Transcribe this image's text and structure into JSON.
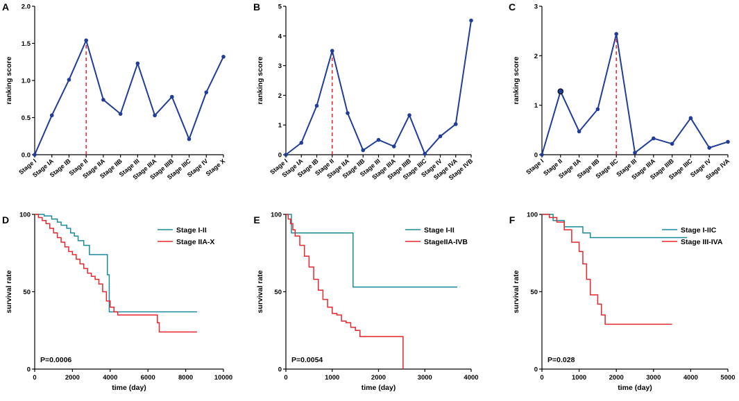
{
  "colors": {
    "blue": "#1f3d99",
    "red": "#e8262b",
    "teal": "#1a8a99",
    "axis": "#000000"
  },
  "chart_data": [
    {
      "panel": "A",
      "type": "line",
      "ylabel": "ranking score",
      "xlabel": "",
      "ylim": [
        0,
        2
      ],
      "yticks": [
        0.0,
        0.5,
        1.0,
        1.5,
        2.0
      ],
      "ytick_labels": [
        "0.0",
        "0.5",
        "1.0",
        "1.5",
        "2.0"
      ],
      "categories": [
        "Stage I",
        "Stage IA",
        "Stage IB",
        "Stage II",
        "Stage IIA",
        "Stage IIB",
        "Stage III",
        "Stage IIIA",
        "Stage IIIB",
        "Stage IIIC",
        "Stage IV",
        "Stage X"
      ],
      "values": [
        0.0,
        0.53,
        1.01,
        1.54,
        0.74,
        0.55,
        1.23,
        0.53,
        0.78,
        0.21,
        0.84,
        1.32
      ],
      "highlight_index": 3
    },
    {
      "panel": "B",
      "type": "line",
      "ylabel": "ranking score",
      "xlabel": "",
      "ylim": [
        0,
        5
      ],
      "yticks": [
        0,
        1,
        2,
        3,
        4,
        5
      ],
      "ytick_labels": [
        "0",
        "1",
        "2",
        "3",
        "4",
        "5"
      ],
      "categories": [
        "Stage I",
        "Stage IA",
        "Stage IB",
        "Stage II",
        "Stage IIA",
        "Stage IIB",
        "Stage III",
        "Stage IIIA",
        "Stage IIIB",
        "Stage IIIC",
        "Stage IV",
        "Stage IVA",
        "Stage IVB"
      ],
      "values": [
        0.0,
        0.4,
        1.65,
        3.5,
        1.4,
        0.15,
        0.5,
        0.28,
        1.33,
        0.03,
        0.62,
        1.03,
        4.52
      ],
      "highlight_index": 3
    },
    {
      "panel": "C",
      "type": "line",
      "ylabel": "ranking score",
      "xlabel": "",
      "ylim": [
        0,
        3
      ],
      "yticks": [
        0,
        1,
        2,
        3
      ],
      "ytick_labels": [
        "0",
        "1",
        "2",
        "3"
      ],
      "categories": [
        "Stage I",
        "Stage II",
        "Stage IIA",
        "Stage IIB",
        "Stage IIC",
        "Stage III",
        "Stage IIIA",
        "Stage IIIB",
        "Stage IIIC",
        "Stage IV",
        "Stage IVA"
      ],
      "values": [
        0.0,
        1.28,
        0.47,
        0.92,
        2.44,
        0.04,
        0.33,
        0.22,
        0.74,
        0.14,
        0.26
      ],
      "highlight_index": 4
    },
    {
      "panel": "D",
      "type": "line",
      "xlabel": "time (day)",
      "ylabel": "survival rate",
      "xlim": [
        0,
        10000
      ],
      "ylim": [
        0,
        100
      ],
      "xticks": [
        0,
        2000,
        4000,
        6000,
        8000,
        10000
      ],
      "xtick_labels": [
        "0",
        "2000",
        "4000",
        "6000",
        "8000",
        "10000"
      ],
      "yticks": [
        0,
        50,
        100
      ],
      "ytick_labels": [
        "0",
        "50",
        "100"
      ],
      "pvalue": "P=0.0006",
      "series": [
        {
          "name": "Stage I-II",
          "color": "teal",
          "x": [
            0,
            500,
            900,
            1200,
            1400,
            1700,
            1900,
            2100,
            2300,
            2600,
            2900,
            3600,
            3850,
            3950,
            4200,
            8600
          ],
          "y": [
            100,
            99,
            97,
            95,
            93,
            91,
            88,
            86,
            83,
            80,
            74,
            74,
            61,
            37,
            37,
            37
          ]
        },
        {
          "name": "Stage IIA-X",
          "color": "red",
          "x": [
            0,
            200,
            400,
            600,
            800,
            1000,
            1200,
            1400,
            1600,
            1800,
            2000,
            2200,
            2400,
            2600,
            2800,
            3000,
            3200,
            3400,
            3600,
            3800,
            4000,
            4200,
            4400,
            5000,
            6000,
            6500,
            6600,
            8600
          ],
          "y": [
            100,
            98,
            96,
            94,
            91,
            88,
            85,
            82,
            79,
            76,
            74,
            71,
            68,
            65,
            62,
            60,
            58,
            55,
            50,
            44,
            40,
            37,
            35,
            35,
            35,
            30,
            24,
            24
          ]
        }
      ]
    },
    {
      "panel": "E",
      "type": "line",
      "xlabel": "time (day)",
      "ylabel": "survival rate",
      "xlim": [
        0,
        4000
      ],
      "ylim": [
        0,
        100
      ],
      "xticks": [
        0,
        1000,
        2000,
        3000,
        4000
      ],
      "xtick_labels": [
        "0",
        "1000",
        "2000",
        "3000",
        "4000"
      ],
      "yticks": [
        0,
        50,
        100
      ],
      "ytick_labels": [
        "0",
        "50",
        "100"
      ],
      "pvalue": "P=0.0054",
      "series": [
        {
          "name": "Stage I-II",
          "color": "teal",
          "x": [
            0,
            120,
            1450,
            1450,
            3700
          ],
          "y": [
            100,
            88,
            88,
            53,
            53
          ]
        },
        {
          "name": "StageIIA-IVB",
          "color": "red",
          "x": [
            0,
            50,
            100,
            150,
            200,
            300,
            400,
            500,
            600,
            700,
            800,
            900,
            1000,
            1100,
            1200,
            1300,
            1400,
            1500,
            1600,
            2000,
            2530,
            2530
          ],
          "y": [
            100,
            97,
            94,
            90,
            86,
            80,
            73,
            66,
            58,
            51,
            45,
            40,
            36,
            35,
            31,
            30,
            27,
            25,
            21,
            21,
            21,
            0
          ]
        }
      ]
    },
    {
      "panel": "F",
      "type": "line",
      "xlabel": "time (day)",
      "ylabel": "survival rate",
      "xlim": [
        0,
        5000
      ],
      "ylim": [
        0,
        100
      ],
      "xticks": [
        0,
        1000,
        2000,
        3000,
        4000,
        5000
      ],
      "xtick_labels": [
        "0",
        "1000",
        "2000",
        "3000",
        "4000",
        "5000"
      ],
      "yticks": [
        0,
        50,
        100
      ],
      "ytick_labels": [
        "0",
        "50",
        "100"
      ],
      "pvalue": "P=0.028",
      "series": [
        {
          "name": "Stage I-IIC",
          "color": "teal",
          "x": [
            0,
            300,
            600,
            1100,
            1300,
            3900
          ],
          "y": [
            100,
            96,
            92,
            88,
            85,
            85
          ]
        },
        {
          "name": "Stage III-IVA",
          "color": "red",
          "x": [
            0,
            200,
            400,
            600,
            800,
            1000,
            1100,
            1200,
            1300,
            1400,
            1500,
            1600,
            1700,
            3500
          ],
          "y": [
            100,
            98,
            95,
            90,
            82,
            76,
            68,
            58,
            48,
            48,
            42,
            35,
            29,
            29
          ]
        }
      ]
    }
  ]
}
